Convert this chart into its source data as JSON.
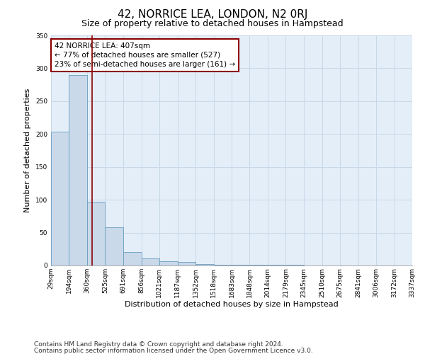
{
  "title": "42, NORRICE LEA, LONDON, N2 0RJ",
  "subtitle": "Size of property relative to detached houses in Hampstead",
  "xlabel": "Distribution of detached houses by size in Hampstead",
  "ylabel": "Number of detached properties",
  "bar_values": [
    204,
    290,
    97,
    58,
    20,
    11,
    6,
    5,
    2,
    1,
    1,
    1,
    1,
    1,
    0,
    0,
    0,
    0,
    0,
    0
  ],
  "bin_edges": [
    29,
    194,
    360,
    525,
    691,
    856,
    1021,
    1187,
    1352,
    1518,
    1683,
    1848,
    2014,
    2179,
    2345,
    2510,
    2675,
    2841,
    3006,
    3172,
    3337
  ],
  "tick_labels": [
    "29sqm",
    "194sqm",
    "360sqm",
    "525sqm",
    "691sqm",
    "856sqm",
    "1021sqm",
    "1187sqm",
    "1352sqm",
    "1518sqm",
    "1683sqm",
    "1848sqm",
    "2014sqm",
    "2179sqm",
    "2345sqm",
    "2510sqm",
    "2675sqm",
    "2841sqm",
    "3006sqm",
    "3172sqm",
    "3337sqm"
  ],
  "bar_color": "#c9d9ea",
  "bar_edge_color": "#6a9dc0",
  "grid_color": "#c8d8e8",
  "bg_color": "#e4eef8",
  "vline_x": 407,
  "vline_color": "#8b0000",
  "annotation_text": "42 NORRICE LEA: 407sqm\n← 77% of detached houses are smaller (527)\n23% of semi-detached houses are larger (161) →",
  "annotation_box_color": "#ffffff",
  "annotation_box_edge_color": "#8b0000",
  "ylim": [
    0,
    350
  ],
  "yticks": [
    0,
    50,
    100,
    150,
    200,
    250,
    300,
    350
  ],
  "footer_line1": "Contains HM Land Registry data © Crown copyright and database right 2024.",
  "footer_line2": "Contains public sector information licensed under the Open Government Licence v3.0.",
  "title_fontsize": 11,
  "subtitle_fontsize": 9,
  "axis_label_fontsize": 8,
  "tick_fontsize": 6.5,
  "annotation_fontsize": 7.5,
  "footer_fontsize": 6.5
}
